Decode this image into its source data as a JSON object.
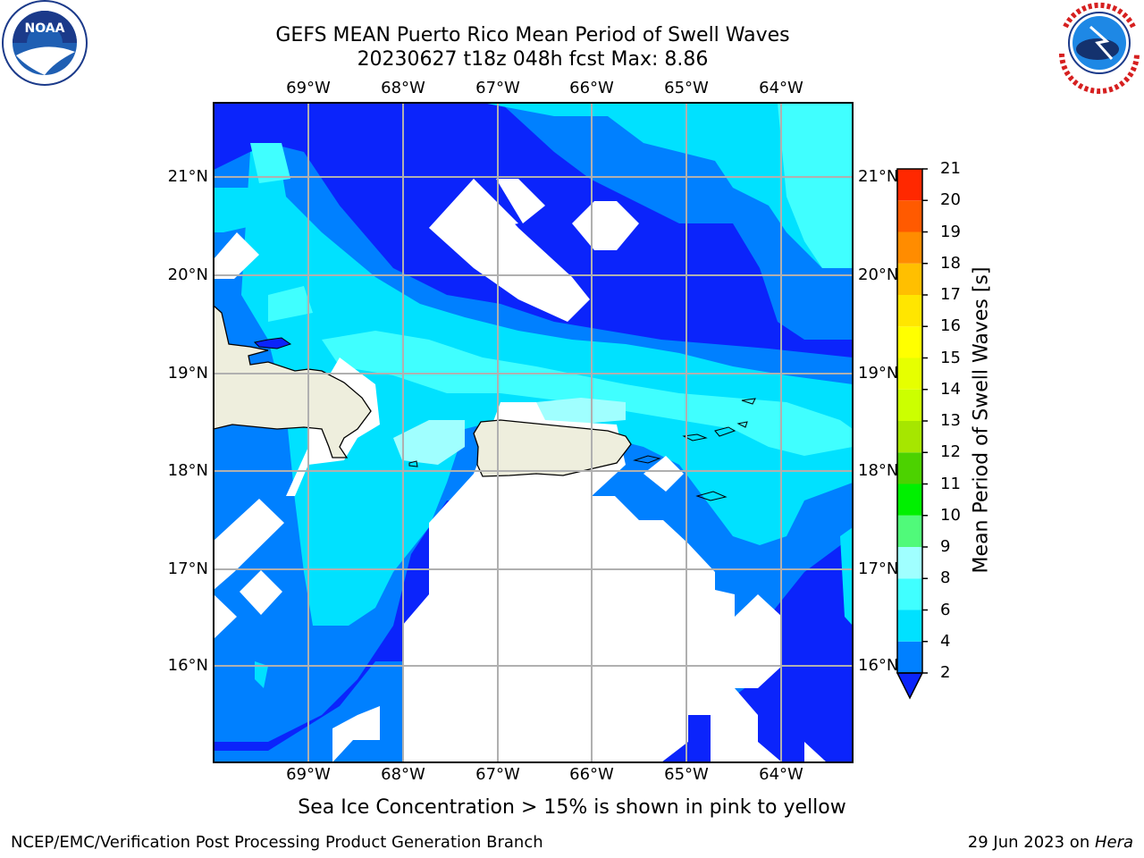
{
  "title": {
    "line1": "GEFS MEAN Puerto Rico Mean Period of Swell Waves",
    "line2": "20230627 t18z 048h fcst   Max: 8.86"
  },
  "map": {
    "lon_labels": [
      "69°W",
      "68°W",
      "67°W",
      "66°W",
      "65°W",
      "64°W"
    ],
    "lat_labels": [
      "21°N",
      "20°N",
      "19°N",
      "18°N",
      "17°N",
      "16°N"
    ],
    "lon_range": [
      -70.0,
      -63.25
    ],
    "lat_range": [
      15.0,
      21.75
    ],
    "colors": {
      "land": "#eeeedd",
      "ocean_missing": "#ffffff",
      "grid": "#b0b0b0",
      "coast": "#000000"
    }
  },
  "colorbar": {
    "label": "Mean Period of Swell Waves [s]",
    "ticks": [
      "2",
      "4",
      "6",
      "8",
      "9",
      "10",
      "11",
      "12",
      "13",
      "14",
      "15",
      "16",
      "17",
      "18",
      "19",
      "20",
      "21"
    ],
    "extend": "min",
    "colors": [
      "#0b24fb",
      "#0080ff",
      "#00e1ff",
      "#40ffff",
      "#a0ffff",
      "#50fa7a",
      "#00f000",
      "#4cd200",
      "#a6e600",
      "#ccff00",
      "#e6ff00",
      "#ffff00",
      "#ffe600",
      "#ffbf00",
      "#ff8c00",
      "#ff5a00",
      "#ff2800",
      "#ff0000"
    ]
  },
  "footer": {
    "note": "Sea Ice Concentration > 15% is shown in pink to yellow",
    "credit_left": "NCEP/EMC/Verification Post Processing Product Generation Branch",
    "credit_date": "29 Jun 2023 on ",
    "credit_machine": "Hera"
  },
  "logos": {
    "left": "NOAA",
    "right": "NATIONAL WEATHER SERVICE"
  }
}
